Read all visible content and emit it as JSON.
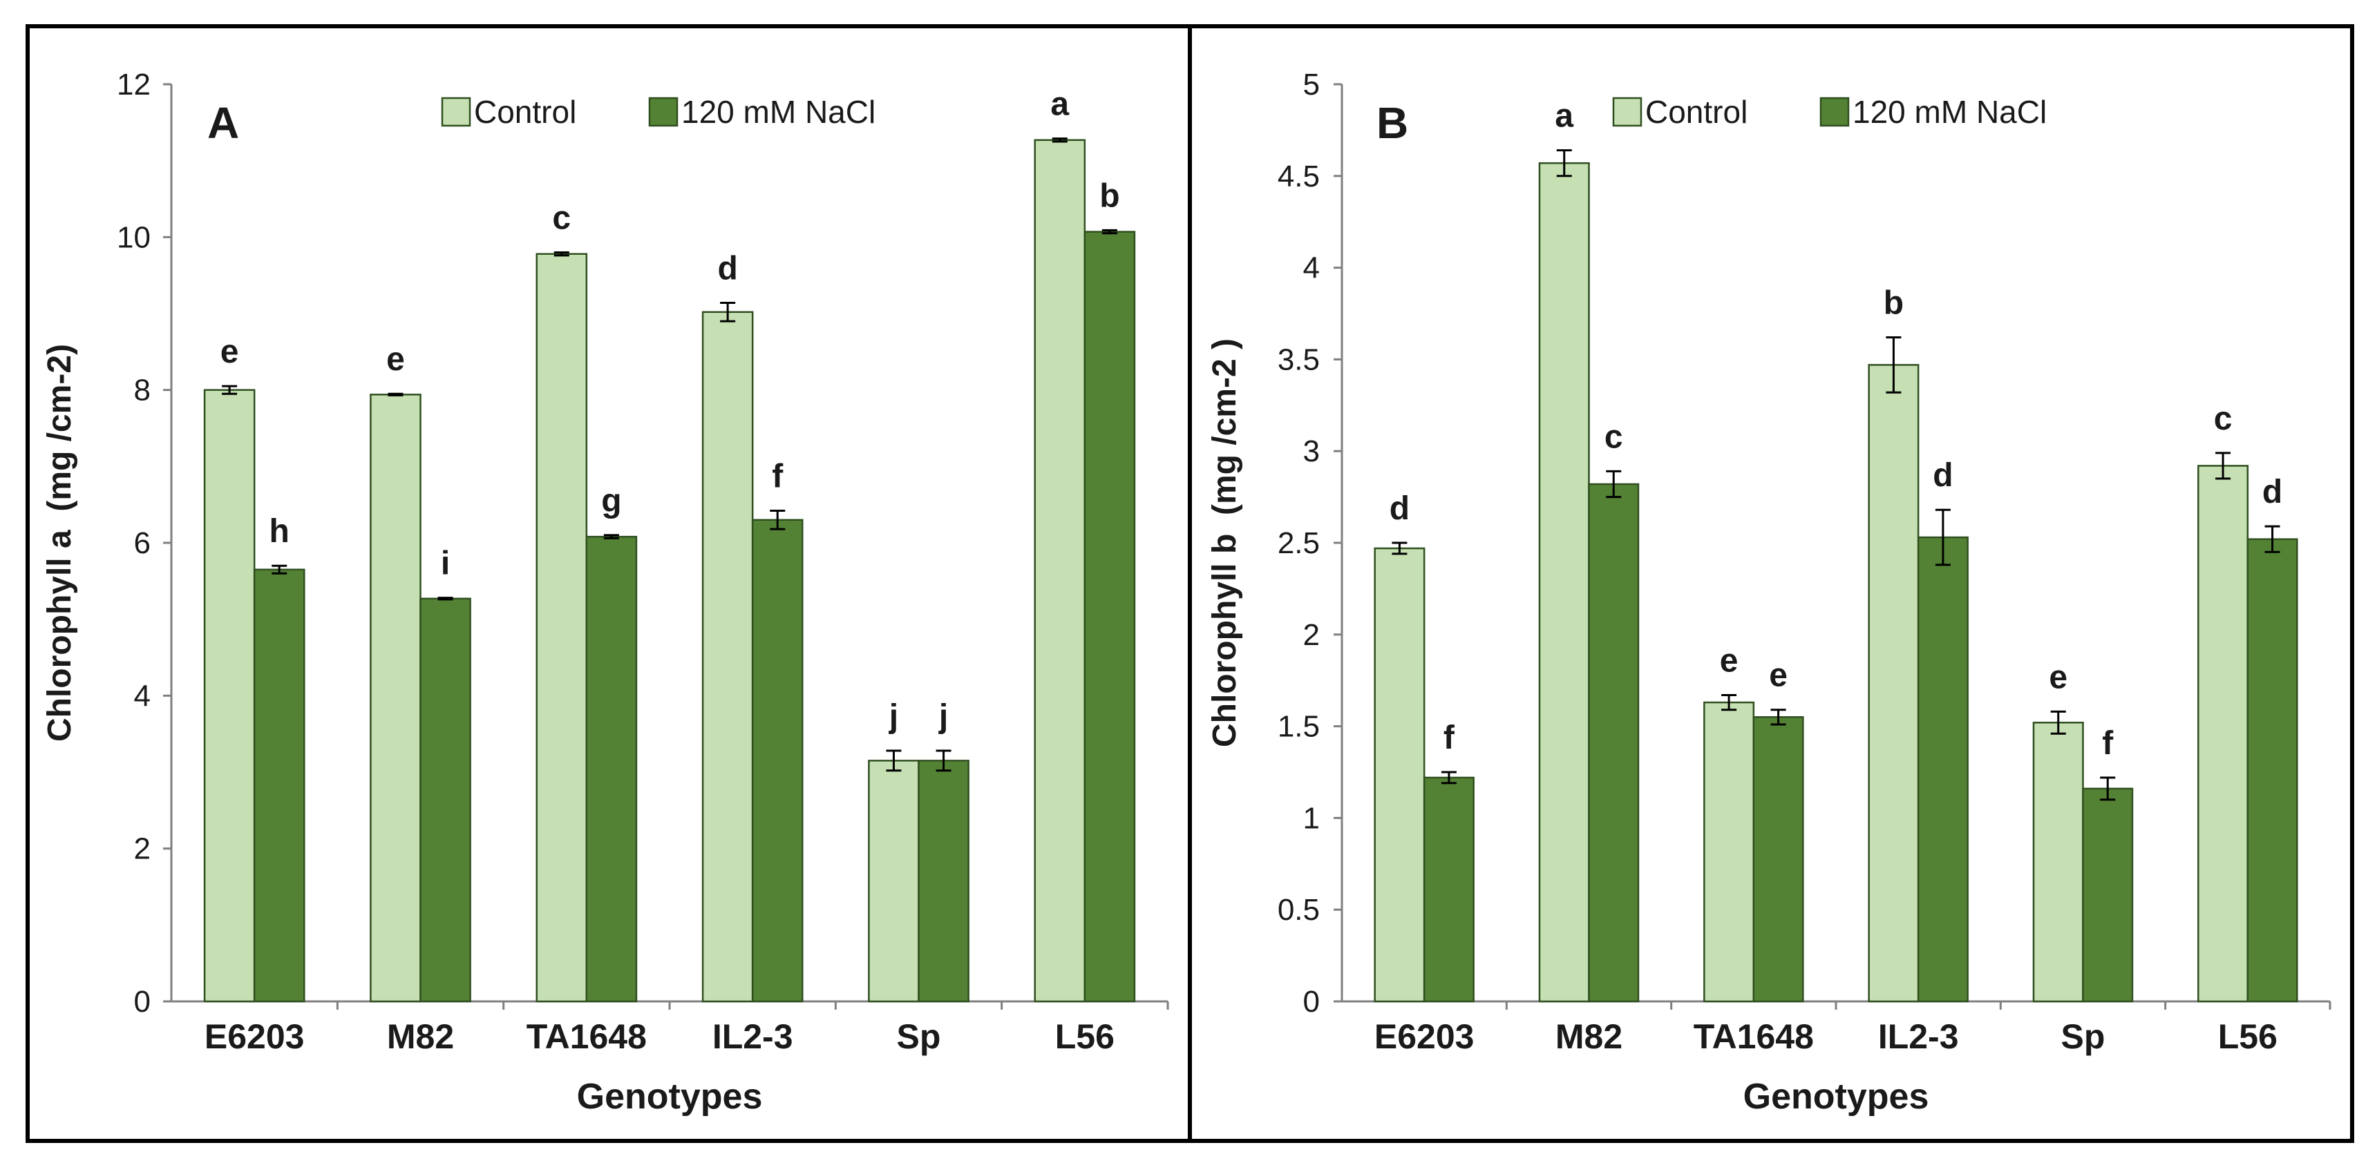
{
  "colors": {
    "control_fill": "#c6e0b4",
    "salt_fill": "#548235",
    "bar_stroke": "#2f4f1f",
    "axis": "#7f7f7f",
    "text": "#1a1a1a",
    "frame": "#000000"
  },
  "chart_data": [
    {
      "type": "bar",
      "panel_label": "A",
      "title": "",
      "xlabel": "Genotypes",
      "ylabel": "Chlorophyll a  (mg /cm-2)",
      "ylim": [
        0,
        12
      ],
      "yticks": [
        0,
        2,
        4,
        6,
        8,
        10,
        12
      ],
      "ytick_labels": [
        "0",
        "2",
        "4",
        "6",
        "8",
        "10",
        "12"
      ],
      "grid": false,
      "legend_position": "top-center",
      "categories": [
        "E6203",
        "M82",
        "TA1648",
        "IL2-3",
        "Sp",
        "L56"
      ],
      "series": [
        {
          "name": "Control",
          "color": "#c6e0b4",
          "values": [
            8.0,
            7.94,
            9.78,
            9.02,
            3.15,
            11.27
          ],
          "errors": [
            0.05,
            0.01,
            0.02,
            0.12,
            0.13,
            0.02
          ],
          "letters": [
            "e",
            "e",
            "c",
            "d",
            "j",
            "a"
          ]
        },
        {
          "name": "120 mM NaCl",
          "color": "#548235",
          "values": [
            5.65,
            5.27,
            6.08,
            6.3,
            3.15,
            10.07
          ],
          "errors": [
            0.05,
            0.01,
            0.02,
            0.12,
            0.13,
            0.02
          ],
          "letters": [
            "h",
            "i",
            "g",
            "f",
            "j",
            "b"
          ]
        }
      ]
    },
    {
      "type": "bar",
      "panel_label": "B",
      "title": "",
      "xlabel": "Genotypes",
      "ylabel": "Chlorophyll b  (mg /cm-2 )",
      "ylim": [
        0,
        5
      ],
      "yticks": [
        0,
        0.5,
        1,
        1.5,
        2,
        2.5,
        3,
        3.5,
        4,
        4.5,
        5
      ],
      "ytick_labels": [
        "0",
        "0.5",
        "1",
        "1.5",
        "2",
        "2.5",
        "3",
        "3.5",
        "4",
        "4.5",
        "5"
      ],
      "grid": false,
      "legend_position": "top-center",
      "categories": [
        "E6203",
        "M82",
        "TA1648",
        "IL2-3",
        "Sp",
        "L56"
      ],
      "series": [
        {
          "name": "Control",
          "color": "#c6e0b4",
          "values": [
            2.47,
            4.57,
            1.63,
            3.47,
            1.52,
            2.92
          ],
          "errors": [
            0.03,
            0.07,
            0.04,
            0.15,
            0.06,
            0.07
          ],
          "letters": [
            "d",
            "a",
            "e",
            "b",
            "e",
            "c"
          ]
        },
        {
          "name": "120 mM NaCl",
          "color": "#548235",
          "values": [
            1.22,
            2.82,
            1.55,
            2.53,
            1.16,
            2.52
          ],
          "errors": [
            0.03,
            0.07,
            0.04,
            0.15,
            0.06,
            0.07
          ],
          "letters": [
            "f",
            "c",
            "e",
            "d",
            "f",
            "d"
          ]
        }
      ]
    }
  ]
}
